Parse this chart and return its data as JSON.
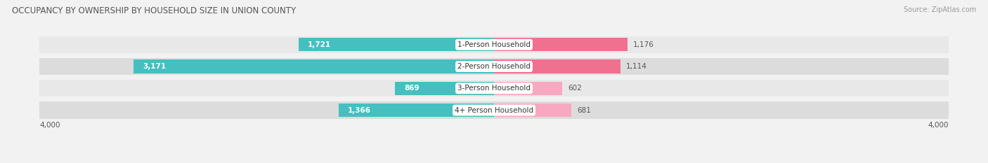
{
  "title": "OCCUPANCY BY OWNERSHIP BY HOUSEHOLD SIZE IN UNION COUNTY",
  "source": "Source: ZipAtlas.com",
  "categories": [
    "1-Person Household",
    "2-Person Household",
    "3-Person Household",
    "4+ Person Household"
  ],
  "owner_values": [
    1721,
    3171,
    869,
    1366
  ],
  "renter_values": [
    1176,
    1114,
    602,
    681
  ],
  "max_val": 4000,
  "owner_color": "#45BFBF",
  "renter_color": "#F07090",
  "renter_color_light": "#F8A8C0",
  "bg_color": "#f2f2f2",
  "row_bg_even": "#ebebeb",
  "row_bg_odd": "#e0e0e0",
  "title_fontsize": 8.5,
  "label_fontsize": 7.5,
  "value_fontsize": 7.5,
  "axis_label_fontsize": 7.5,
  "legend_fontsize": 7.5,
  "source_fontsize": 7.0
}
